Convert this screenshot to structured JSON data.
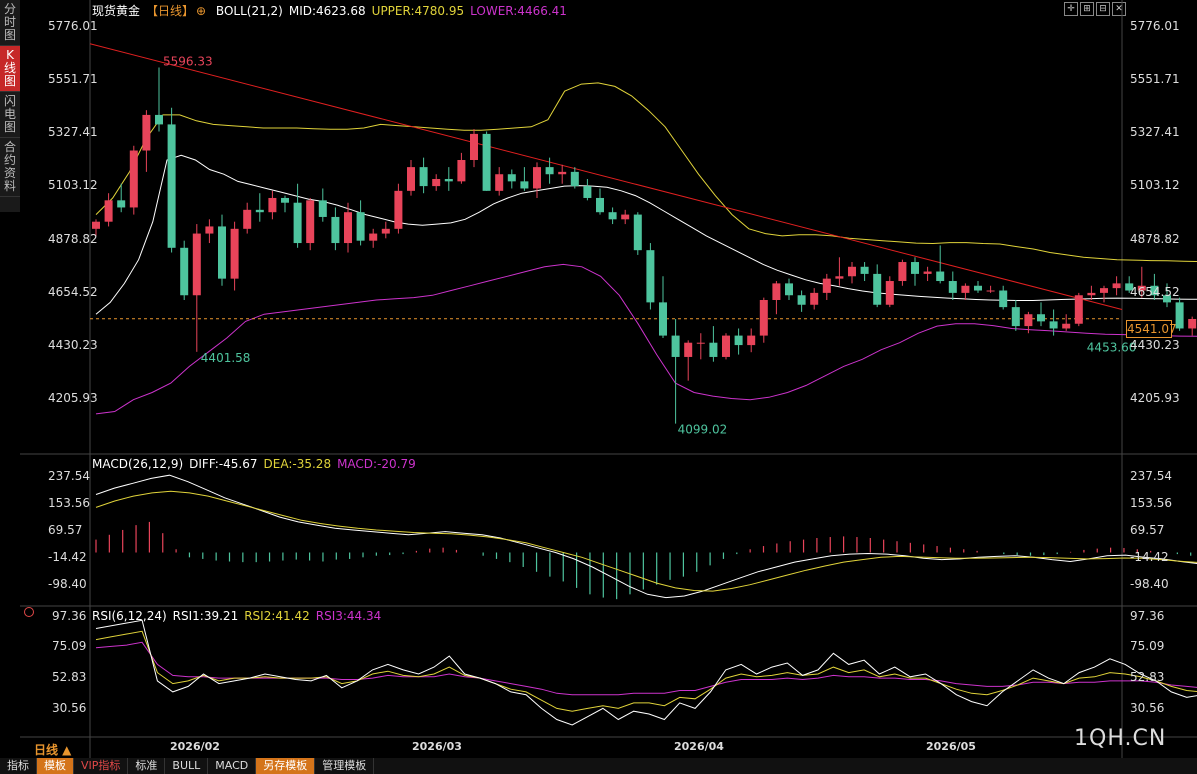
{
  "side_tabs": [
    {
      "label": "分时图",
      "active": false
    },
    {
      "label": "K线图",
      "active": true
    },
    {
      "label": "闪电图",
      "active": false
    },
    {
      "label": "合约资料",
      "active": false
    }
  ],
  "header": {
    "instrument": "现货黄金",
    "period": "【日线】",
    "add_icon": "plus-circle-icon",
    "boll": "BOLL(21,2)",
    "mid": "MID:4623.68",
    "upper": "UPPER:4780.95",
    "lower": "LOWER:4466.41"
  },
  "macd_header": {
    "name": "MACD(26,12,9)",
    "diff": "DIFF:-45.67",
    "dea": "DEA:-35.28",
    "macd": "MACD:-20.79"
  },
  "rsi_header": {
    "name": "RSI(6,12,24)",
    "rsi1": "RSI1:39.21",
    "rsi2": "RSI2:41.42",
    "rsi3": "RSI3:44.34"
  },
  "toolbar_icons": [
    "crosshair-icon",
    "zoom-in-icon",
    "zoom-out-icon",
    "close-icon"
  ],
  "price_tag": "4541.07",
  "period_label": "日线 ▲",
  "watermark": "1QH.CN",
  "bottom_tabs": [
    "指标",
    "模板",
    "VIP指标",
    "标准",
    "BULL",
    "MACD",
    "另存模板",
    "管理模板"
  ],
  "colors": {
    "up": "#e8445a",
    "down": "#4ec49e",
    "mid": "#ffffff",
    "upper": "#e0d33a",
    "lower": "#cc33cc",
    "trend": "#e02020",
    "orange": "#e8952e"
  },
  "chart_data": [
    {
      "type": "candlestick",
      "title": "现货黄金 日线",
      "y_ticks": [
        5776.01,
        5551.71,
        5327.41,
        5103.12,
        4878.82,
        4654.52,
        4430.23,
        4205.93
      ],
      "ylim": [
        4030,
        5800
      ],
      "x_ticks": [
        "2026/02",
        "2026/03",
        "2026/04",
        "2026/05"
      ],
      "annotations": [
        {
          "label": "5596.33",
          "value": 5596.33
        },
        {
          "label": "4401.58",
          "value": 4401.58
        },
        {
          "label": "4099.02",
          "value": 4099.02
        },
        {
          "label": "4453.60",
          "value": 4453.6
        }
      ],
      "last_price": 4541.07,
      "candles": [
        [
          4920,
          4960,
          4890,
          4950
        ],
        [
          4950,
          5070,
          4930,
          5040
        ],
        [
          5040,
          5110,
          4990,
          5010
        ],
        [
          5010,
          5270,
          4980,
          5250
        ],
        [
          5250,
          5420,
          5160,
          5400
        ],
        [
          5400,
          5600,
          5330,
          5360
        ],
        [
          5360,
          5430,
          4820,
          4840
        ],
        [
          4840,
          4870,
          4620,
          4640
        ],
        [
          4640,
          4940,
          4401.58,
          4900
        ],
        [
          4900,
          4960,
          4860,
          4930
        ],
        [
          4930,
          4980,
          4680,
          4710
        ],
        [
          4710,
          4950,
          4660,
          4920
        ],
        [
          4920,
          5030,
          4900,
          5000
        ],
        [
          5000,
          5070,
          4950,
          4990
        ],
        [
          4990,
          5080,
          4960,
          5050
        ],
        [
          5050,
          5060,
          4990,
          5030
        ],
        [
          5030,
          5110,
          4840,
          4860
        ],
        [
          4860,
          5050,
          4830,
          5040
        ],
        [
          5040,
          5090,
          4950,
          4970
        ],
        [
          4970,
          5010,
          4830,
          4860
        ],
        [
          4860,
          5030,
          4820,
          4990
        ],
        [
          4990,
          5040,
          4850,
          4870
        ],
        [
          4870,
          4920,
          4840,
          4900
        ],
        [
          4900,
          4950,
          4880,
          4920
        ],
        [
          4920,
          5110,
          4900,
          5080
        ],
        [
          5080,
          5210,
          5060,
          5180
        ],
        [
          5180,
          5220,
          5070,
          5100
        ],
        [
          5100,
          5150,
          5080,
          5130
        ],
        [
          5130,
          5180,
          5080,
          5120
        ],
        [
          5120,
          5240,
          5110,
          5210
        ],
        [
          5210,
          5340,
          5180,
          5320
        ],
        [
          5320,
          5330,
          5080,
          5080
        ],
        [
          5080,
          5180,
          5060,
          5150
        ],
        [
          5150,
          5170,
          5090,
          5120
        ],
        [
          5120,
          5180,
          5080,
          5090
        ],
        [
          5090,
          5200,
          5050,
          5180
        ],
        [
          5180,
          5220,
          5110,
          5150
        ],
        [
          5150,
          5190,
          5110,
          5160
        ],
        [
          5160,
          5180,
          5090,
          5100
        ],
        [
          5100,
          5130,
          5040,
          5050
        ],
        [
          5050,
          5090,
          4980,
          4990
        ],
        [
          4990,
          5010,
          4940,
          4960
        ],
        [
          4960,
          5000,
          4940,
          4980
        ],
        [
          4980,
          4990,
          4810,
          4830
        ],
        [
          4830,
          4860,
          4580,
          4610
        ],
        [
          4610,
          4720,
          4460,
          4470
        ],
        [
          4470,
          4540,
          4099.02,
          4380
        ],
        [
          4380,
          4450,
          4280,
          4440
        ],
        [
          4440,
          4480,
          4370,
          4440
        ],
        [
          4440,
          4510,
          4360,
          4380
        ],
        [
          4380,
          4480,
          4370,
          4470
        ],
        [
          4470,
          4500,
          4390,
          4430
        ],
        [
          4430,
          4500,
          4400,
          4470
        ],
        [
          4470,
          4630,
          4440,
          4620
        ],
        [
          4620,
          4700,
          4560,
          4690
        ],
        [
          4690,
          4710,
          4620,
          4640
        ],
        [
          4640,
          4660,
          4570,
          4600
        ],
        [
          4600,
          4670,
          4580,
          4650
        ],
        [
          4650,
          4730,
          4620,
          4710
        ],
        [
          4710,
          4800,
          4680,
          4720
        ],
        [
          4720,
          4780,
          4690,
          4760
        ],
        [
          4760,
          4780,
          4700,
          4730
        ],
        [
          4730,
          4770,
          4590,
          4600
        ],
        [
          4600,
          4720,
          4590,
          4700
        ],
        [
          4700,
          4790,
          4680,
          4780
        ],
        [
          4780,
          4800,
          4680,
          4730
        ],
        [
          4730,
          4760,
          4700,
          4740
        ],
        [
          4740,
          4850,
          4690,
          4700
        ],
        [
          4700,
          4740,
          4620,
          4650
        ],
        [
          4650,
          4690,
          4620,
          4680
        ],
        [
          4680,
          4700,
          4650,
          4660
        ],
        [
          4660,
          4680,
          4650,
          4660
        ],
        [
          4660,
          4680,
          4580,
          4590
        ],
        [
          4590,
          4620,
          4490,
          4510
        ],
        [
          4510,
          4570,
          4480,
          4560
        ],
        [
          4560,
          4610,
          4510,
          4530
        ],
        [
          4530,
          4580,
          4470,
          4500
        ],
        [
          4500,
          4560,
          4490,
          4520
        ],
        [
          4520,
          4650,
          4510,
          4640
        ],
        [
          4640,
          4680,
          4620,
          4650
        ],
        [
          4650,
          4680,
          4610,
          4670
        ],
        [
          4670,
          4720,
          4640,
          4690
        ],
        [
          4690,
          4720,
          4650,
          4660
        ],
        [
          4660,
          4760,
          4630,
          4680
        ],
        [
          4680,
          4730,
          4620,
          4640
        ],
        [
          4640,
          4690,
          4590,
          4610
        ],
        [
          4610,
          4630,
          4490,
          4500
        ],
        [
          4500,
          4550,
          4470,
          4540
        ],
        [
          4540,
          4560,
          4453.6,
          4490
        ],
        [
          4490,
          4560,
          4470,
          4541.07
        ]
      ],
      "boll_mid": [
        4560,
        4610,
        4690,
        4790,
        4950,
        5210,
        5230,
        5210,
        5170,
        5150,
        5120,
        5105,
        5090,
        5075,
        5060,
        5045,
        5035,
        5020,
        5000,
        4980,
        4965,
        4950,
        4940,
        4935,
        4940,
        4945,
        4960,
        4990,
        5025,
        5050,
        5070,
        5080,
        5090,
        5100,
        5102,
        5100,
        5095,
        5080,
        5060,
        5030,
        4995,
        4960,
        4925,
        4890,
        4860,
        4830,
        4800,
        4770,
        4745,
        4725,
        4705,
        4690,
        4680,
        4668,
        4658,
        4650,
        4645,
        4640,
        4635,
        4632,
        4628,
        4625,
        4622,
        4620,
        4619,
        4618,
        4618,
        4620,
        4622,
        4624,
        4625,
        4627,
        4628,
        4627,
        4626,
        4625,
        4624,
        4623,
        4623.5,
        4623.68
      ],
      "boll_upper": [
        4980,
        5050,
        5160,
        5300,
        5400,
        5400,
        5375,
        5360,
        5355,
        5350,
        5345,
        5345,
        5345,
        5342,
        5340,
        5340,
        5345,
        5360,
        5355,
        5350,
        5345,
        5340,
        5335,
        5335,
        5340,
        5345,
        5350,
        5380,
        5500,
        5530,
        5535,
        5520,
        5480,
        5420,
        5350,
        5250,
        5150,
        5060,
        4980,
        4920,
        4900,
        4890,
        4895,
        4895,
        4890,
        4880,
        4875,
        4870,
        4865,
        4860,
        4858,
        4862,
        4862,
        4858,
        4856,
        4845,
        4835,
        4820,
        4810,
        4800,
        4795,
        4790,
        4788,
        4786,
        4785,
        4783,
        4782,
        4780.95
      ],
      "boll_lower": [
        4140,
        4150,
        4200,
        4230,
        4270,
        4340,
        4400,
        4460,
        4530,
        4560,
        4570,
        4580,
        4590,
        4600,
        4610,
        4620,
        4625,
        4630,
        4640,
        4660,
        4680,
        4700,
        4720,
        4740,
        4760,
        4770,
        4760,
        4720,
        4640,
        4520,
        4390,
        4270,
        4230,
        4215,
        4205,
        4200,
        4210,
        4230,
        4260,
        4300,
        4340,
        4370,
        4410,
        4440,
        4480,
        4510,
        4520,
        4520,
        4512,
        4500,
        4495,
        4490,
        4485,
        4480,
        4476,
        4474,
        4472,
        4470,
        4468,
        4467,
        4466.41
      ]
    },
    {
      "type": "bar",
      "name": "MACD(26,12,9)",
      "y_ticks": [
        237.54,
        153.56,
        69.57,
        -14.42,
        -98.4
      ],
      "ylim": [
        -160,
        250
      ],
      "hist": [
        40,
        55,
        70,
        85,
        95,
        60,
        10,
        -15,
        -20,
        -25,
        -28,
        -30,
        -30,
        -28,
        -25,
        -22,
        -25,
        -28,
        -22,
        -20,
        -15,
        -10,
        -8,
        -5,
        5,
        12,
        15,
        8,
        0,
        -10,
        -20,
        -30,
        -45,
        -60,
        -75,
        -90,
        -110,
        -130,
        -140,
        -145,
        -130,
        -115,
        -100,
        -85,
        -75,
        -60,
        -40,
        -20,
        -5,
        10,
        20,
        28,
        35,
        40,
        45,
        48,
        50,
        48,
        45,
        40,
        35,
        30,
        25,
        20,
        15,
        10,
        5,
        0,
        -5,
        -8,
        -10,
        -8,
        -5,
        2,
        8,
        12,
        15,
        14,
        10,
        5,
        0,
        -5,
        -10,
        -15,
        -20.79
      ],
      "diff": [
        180,
        200,
        215,
        230,
        240,
        220,
        195,
        170,
        150,
        130,
        110,
        95,
        85,
        75,
        70,
        65,
        60,
        55,
        60,
        65,
        60,
        55,
        45,
        30,
        15,
        0,
        -20,
        -45,
        -75,
        -105,
        -130,
        -140,
        -135,
        -120,
        -100,
        -80,
        -60,
        -45,
        -30,
        -20,
        -10,
        -5,
        -3,
        -5,
        -10,
        -18,
        -22,
        -20,
        -15,
        -12,
        -10,
        -15,
        -22,
        -28,
        -20,
        -10,
        -8,
        -15,
        -20,
        -28,
        -35,
        -45.67
      ],
      "dea": [
        140,
        160,
        175,
        185,
        190,
        185,
        175,
        160,
        145,
        130,
        115,
        100,
        90,
        82,
        75,
        70,
        66,
        62,
        60,
        58,
        54,
        48,
        40,
        30,
        15,
        0,
        -15,
        -35,
        -55,
        -75,
        -95,
        -110,
        -118,
        -120,
        -112,
        -100,
        -85,
        -70,
        -55,
        -42,
        -30,
        -22,
        -15,
        -12,
        -14,
        -16,
        -18,
        -18,
        -17,
        -16,
        -15,
        -16,
        -18,
        -20,
        -19,
        -17,
        -18,
        -22,
        -27,
        -31,
        -35.28
      ]
    },
    {
      "type": "line",
      "name": "RSI(6,12,24)",
      "y_ticks": [
        97.36,
        75.09,
        52.83,
        30.56
      ],
      "ylim": [
        10,
        100
      ],
      "rsi1": [
        88,
        90,
        92,
        94,
        50,
        42,
        46,
        55,
        48,
        50,
        52,
        55,
        53,
        51,
        50,
        54,
        45,
        50,
        58,
        62,
        58,
        55,
        60,
        68,
        55,
        52,
        48,
        42,
        40,
        30,
        22,
        18,
        24,
        30,
        22,
        28,
        26,
        22,
        34,
        30,
        42,
        58,
        62,
        55,
        60,
        63,
        54,
        58,
        70,
        62,
        65,
        55,
        60,
        53,
        55,
        48,
        40,
        35,
        32,
        42,
        50,
        58,
        52,
        48,
        56,
        60,
        66,
        62,
        55,
        50,
        42,
        38,
        40,
        39.21
      ],
      "rsi2": [
        80,
        82,
        84,
        86,
        56,
        48,
        50,
        54,
        50,
        52,
        52,
        53,
        52,
        52,
        52,
        53,
        48,
        50,
        55,
        57,
        54,
        53,
        55,
        60,
        54,
        52,
        48,
        44,
        42,
        36,
        30,
        28,
        30,
        32,
        30,
        34,
        34,
        32,
        38,
        37,
        44,
        52,
        55,
        53,
        54,
        56,
        54,
        55,
        60,
        56,
        58,
        53,
        55,
        52,
        52,
        48,
        44,
        41,
        40,
        43,
        47,
        52,
        50,
        48,
        52,
        53,
        56,
        55,
        53,
        50,
        46,
        43,
        42,
        41.42
      ],
      "rsi3": [
        74,
        75,
        76,
        78,
        62,
        54,
        53,
        53,
        52,
        52,
        52,
        52,
        52,
        52,
        52,
        52,
        51,
        51,
        52,
        54,
        53,
        53,
        53,
        55,
        53,
        52,
        50,
        48,
        46,
        44,
        41,
        40,
        40,
        40,
        40,
        41,
        41,
        41,
        43,
        43,
        46,
        49,
        51,
        51,
        51,
        52,
        51,
        52,
        54,
        53,
        53,
        52,
        52,
        51,
        51,
        50,
        48,
        47,
        46,
        46,
        47,
        49,
        49,
        48,
        49,
        49,
        50,
        50,
        50,
        49,
        47,
        46,
        45,
        44.34
      ]
    }
  ]
}
